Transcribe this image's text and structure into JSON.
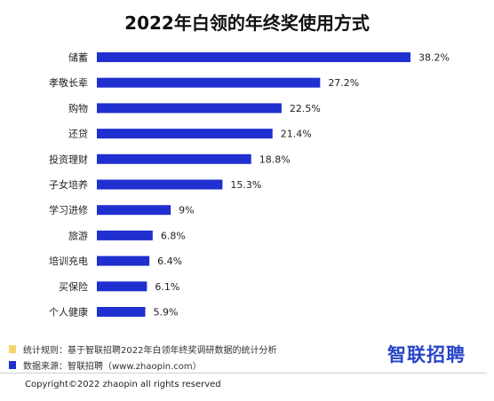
{
  "title": "2022年白领的年终奖使用方式",
  "chart_data": {
    "type": "bar",
    "orientation": "horizontal",
    "title": "2022年白领的年终奖使用方式",
    "categories": [
      "储蓄",
      "孝敬长辈",
      "购物",
      "还贷",
      "投资理财",
      "子女培养",
      "学习进修",
      "旅游",
      "培训充电",
      "买保险",
      "个人健康"
    ],
    "values": [
      38.2,
      27.2,
      22.5,
      21.4,
      18.8,
      15.3,
      9,
      6.8,
      6.4,
      6.1,
      5.9
    ],
    "value_labels": [
      "38.2%",
      "27.2%",
      "22.5%",
      "21.4%",
      "18.8%",
      "15.3%",
      "9%",
      "6.8%",
      "6.4%",
      "6.1%",
      "5.9%"
    ],
    "xlim": [
      0,
      40
    ],
    "bar_color": "#1f2fd0",
    "grid": false
  },
  "legend": [
    {
      "text": "统计规则：基于智联招聘2022年白领年终奖调研数据的统计分析",
      "color": "#f2d66b"
    },
    {
      "text": "数据来源：智联招聘（www.zhaopin.com）",
      "color": "#1f2fd0"
    }
  ],
  "logo": {
    "text": "智联招聘"
  },
  "copyright": "Copyright©2022 zhaopin all rights reserved"
}
